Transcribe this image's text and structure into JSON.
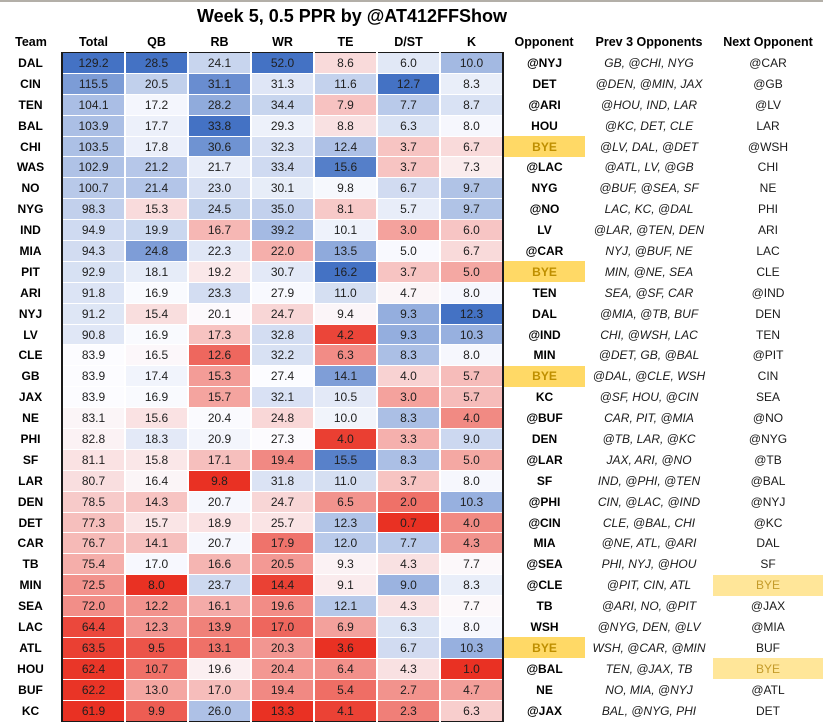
{
  "title": "Week 5, 0.5 PPR by @AT412FFShow",
  "colors": {
    "scale_low": "#E93123",
    "scale_mid": "#FCFCFF",
    "scale_high": "#4472C4",
    "bye_opponent_bg": "#FFD966",
    "bye_text": "#BF8F00",
    "bye_next_bg": "#FFE699",
    "bye_next_text": "#C49B2A"
  },
  "chart_data": {
    "type": "heatmap",
    "title": "Week 5, 0.5 PPR by @AT412FFShow",
    "color_scale": "per-column 3-color scale: red = column min, white = column median, blue = column max",
    "legend_position": "none",
    "columns": [
      "Team",
      "Total",
      "QB",
      "RB",
      "WR",
      "TE",
      "D/ST",
      "K",
      "Opponent",
      "Prev 3 Opponents",
      "Next Opponent"
    ],
    "rows": [
      {
        "team": "DAL",
        "total": "129.2",
        "qb": "28.5",
        "rb": "24.1",
        "wr": "52.0",
        "te": "8.6",
        "dst": "6.0",
        "k": "10.0",
        "opp": "@NYJ",
        "prev": "GB, @CHI, NYG",
        "next": "@CAR"
      },
      {
        "team": "CIN",
        "total": "115.5",
        "qb": "20.5",
        "rb": "31.1",
        "wr": "31.3",
        "te": "11.6",
        "dst": "12.7",
        "k": "8.3",
        "opp": "DET",
        "prev": "@DEN, @MIN, JAX",
        "next": "@GB"
      },
      {
        "team": "TEN",
        "total": "104.1",
        "qb": "17.2",
        "rb": "28.2",
        "wr": "34.4",
        "te": "7.9",
        "dst": "7.7",
        "k": "8.7",
        "opp": "@ARI",
        "prev": "@HOU, IND, LAR",
        "next": "@LV"
      },
      {
        "team": "BAL",
        "total": "103.9",
        "qb": "17.7",
        "rb": "33.8",
        "wr": "29.3",
        "te": "8.8",
        "dst": "6.3",
        "k": "8.0",
        "opp": "HOU",
        "prev": "@KC, DET, CLE",
        "next": "LAR"
      },
      {
        "team": "CHI",
        "total": "103.5",
        "qb": "17.8",
        "rb": "30.6",
        "wr": "32.3",
        "te": "12.4",
        "dst": "3.7",
        "k": "6.7",
        "opp": "BYE",
        "prev": "@LV, DAL, @DET",
        "next": "@WSH"
      },
      {
        "team": "WAS",
        "total": "102.9",
        "qb": "21.2",
        "rb": "21.7",
        "wr": "33.4",
        "te": "15.6",
        "dst": "3.7",
        "k": "7.3",
        "opp": "@LAC",
        "prev": "@ATL, LV, @GB",
        "next": "CHI"
      },
      {
        "team": "NO",
        "total": "100.7",
        "qb": "21.4",
        "rb": "23.0",
        "wr": "30.1",
        "te": "9.8",
        "dst": "6.7",
        "k": "9.7",
        "opp": "NYG",
        "prev": "@BUF, @SEA, SF",
        "next": "NE"
      },
      {
        "team": "NYG",
        "total": "98.3",
        "qb": "15.3",
        "rb": "24.5",
        "wr": "35.0",
        "te": "8.1",
        "dst": "5.7",
        "k": "9.7",
        "opp": "@NO",
        "prev": "LAC, KC, @DAL",
        "next": "PHI"
      },
      {
        "team": "IND",
        "total": "94.9",
        "qb": "19.9",
        "rb": "16.7",
        "wr": "39.2",
        "te": "10.1",
        "dst": "3.0",
        "k": "6.0",
        "opp": "LV",
        "prev": "@LAR, @TEN, DEN",
        "next": "ARI"
      },
      {
        "team": "MIA",
        "total": "94.3",
        "qb": "24.8",
        "rb": "22.3",
        "wr": "22.0",
        "te": "13.5",
        "dst": "5.0",
        "k": "6.7",
        "opp": "@CAR",
        "prev": "NYJ, @BUF, NE",
        "next": "LAC"
      },
      {
        "team": "PIT",
        "total": "92.9",
        "qb": "18.1",
        "rb": "19.2",
        "wr": "30.7",
        "te": "16.2",
        "dst": "3.7",
        "k": "5.0",
        "opp": "BYE",
        "prev": "MIN, @NE, SEA",
        "next": "CLE"
      },
      {
        "team": "ARI",
        "total": "91.8",
        "qb": "16.9",
        "rb": "23.3",
        "wr": "27.9",
        "te": "11.0",
        "dst": "4.7",
        "k": "8.0",
        "opp": "TEN",
        "prev": "SEA, @SF, CAR",
        "next": "@IND"
      },
      {
        "team": "NYJ",
        "total": "91.2",
        "qb": "15.4",
        "rb": "20.1",
        "wr": "24.7",
        "te": "9.4",
        "dst": "9.3",
        "k": "12.3",
        "opp": "DAL",
        "prev": "@MIA, @TB, BUF",
        "next": "DEN"
      },
      {
        "team": "LV",
        "total": "90.8",
        "qb": "16.9",
        "rb": "17.3",
        "wr": "32.8",
        "te": "4.2",
        "dst": "9.3",
        "k": "10.3",
        "opp": "@IND",
        "prev": "CHI, @WSH, LAC",
        "next": "TEN"
      },
      {
        "team": "CLE",
        "total": "83.9",
        "qb": "16.5",
        "rb": "12.6",
        "wr": "32.2",
        "te": "6.3",
        "dst": "8.3",
        "k": "8.0",
        "opp": "MIN",
        "prev": "@DET, GB, @BAL",
        "next": "@PIT"
      },
      {
        "team": "GB",
        "total": "83.9",
        "qb": "17.4",
        "rb": "15.3",
        "wr": "27.4",
        "te": "14.1",
        "dst": "4.0",
        "k": "5.7",
        "opp": "BYE",
        "prev": "@DAL, @CLE, WSH",
        "next": "CIN"
      },
      {
        "team": "JAX",
        "total": "83.9",
        "qb": "16.9",
        "rb": "15.7",
        "wr": "32.1",
        "te": "10.5",
        "dst": "3.0",
        "k": "5.7",
        "opp": "KC",
        "prev": "@SF, HOU, @CIN",
        "next": "SEA"
      },
      {
        "team": "NE",
        "total": "83.1",
        "qb": "15.6",
        "rb": "20.4",
        "wr": "24.8",
        "te": "10.0",
        "dst": "8.3",
        "k": "4.0",
        "opp": "@BUF",
        "prev": "CAR, PIT, @MIA",
        "next": "@NO"
      },
      {
        "team": "PHI",
        "total": "82.8",
        "qb": "18.3",
        "rb": "20.9",
        "wr": "27.3",
        "te": "4.0",
        "dst": "3.3",
        "k": "9.0",
        "opp": "DEN",
        "prev": "@TB, LAR, @KC",
        "next": "@NYG"
      },
      {
        "team": "SF",
        "total": "81.1",
        "qb": "15.8",
        "rb": "17.1",
        "wr": "19.4",
        "te": "15.5",
        "dst": "8.3",
        "k": "5.0",
        "opp": "@LAR",
        "prev": "JAX, ARI, @NO",
        "next": "@TB"
      },
      {
        "team": "LAR",
        "total": "80.7",
        "qb": "16.4",
        "rb": "9.8",
        "wr": "31.8",
        "te": "11.0",
        "dst": "3.7",
        "k": "8.0",
        "opp": "SF",
        "prev": "IND, @PHI, @TEN",
        "next": "@BAL"
      },
      {
        "team": "DEN",
        "total": "78.5",
        "qb": "14.3",
        "rb": "20.7",
        "wr": "24.7",
        "te": "6.5",
        "dst": "2.0",
        "k": "10.3",
        "opp": "@PHI",
        "prev": "CIN, @LAC, @IND",
        "next": "@NYJ"
      },
      {
        "team": "DET",
        "total": "77.3",
        "qb": "15.7",
        "rb": "18.9",
        "wr": "25.7",
        "te": "12.3",
        "dst": "0.7",
        "k": "4.0",
        "opp": "@CIN",
        "prev": "CLE, @BAL, CHI",
        "next": "@KC"
      },
      {
        "team": "CAR",
        "total": "76.7",
        "qb": "14.1",
        "rb": "20.7",
        "wr": "17.9",
        "te": "12.0",
        "dst": "7.7",
        "k": "4.3",
        "opp": "MIA",
        "prev": "@NE, ATL, @ARI",
        "next": "DAL"
      },
      {
        "team": "TB",
        "total": "75.4",
        "qb": "17.0",
        "rb": "16.6",
        "wr": "20.5",
        "te": "9.3",
        "dst": "4.3",
        "k": "7.7",
        "opp": "@SEA",
        "prev": "PHI, NYJ, @HOU",
        "next": "SF"
      },
      {
        "team": "MIN",
        "total": "72.5",
        "qb": "8.0",
        "rb": "23.7",
        "wr": "14.4",
        "te": "9.1",
        "dst": "9.0",
        "k": "8.3",
        "opp": "@CLE",
        "prev": "@PIT, CIN, ATL",
        "next": "BYE"
      },
      {
        "team": "SEA",
        "total": "72.0",
        "qb": "12.2",
        "rb": "16.1",
        "wr": "19.6",
        "te": "12.1",
        "dst": "4.3",
        "k": "7.7",
        "opp": "TB",
        "prev": "@ARI, NO, @PIT",
        "next": "@JAX"
      },
      {
        "team": "LAC",
        "total": "64.4",
        "qb": "12.3",
        "rb": "13.9",
        "wr": "17.0",
        "te": "6.9",
        "dst": "6.3",
        "k": "8.0",
        "opp": "WSH",
        "prev": "@NYG, DEN, @LV",
        "next": "@MIA"
      },
      {
        "team": "ATL",
        "total": "63.5",
        "qb": "9.5",
        "rb": "13.1",
        "wr": "20.3",
        "te": "3.6",
        "dst": "6.7",
        "k": "10.3",
        "opp": "BYE",
        "prev": "WSH, @CAR, @MIN",
        "next": "BUF"
      },
      {
        "team": "HOU",
        "total": "62.4",
        "qb": "10.7",
        "rb": "19.6",
        "wr": "20.4",
        "te": "6.4",
        "dst": "4.3",
        "k": "1.0",
        "opp": "@BAL",
        "prev": "TEN, @JAX, TB",
        "next": "BYE"
      },
      {
        "team": "BUF",
        "total": "62.2",
        "qb": "13.0",
        "rb": "17.0",
        "wr": "19.4",
        "te": "5.4",
        "dst": "2.7",
        "k": "4.7",
        "opp": "NE",
        "prev": "NO, MIA, @NYJ",
        "next": "@ATL"
      },
      {
        "team": "KC",
        "total": "61.9",
        "qb": "9.9",
        "rb": "26.0",
        "wr": "13.3",
        "te": "4.1",
        "dst": "2.3",
        "k": "6.3",
        "opp": "@JAX",
        "prev": "BAL, @NYG, PHI",
        "next": "DET"
      }
    ]
  }
}
